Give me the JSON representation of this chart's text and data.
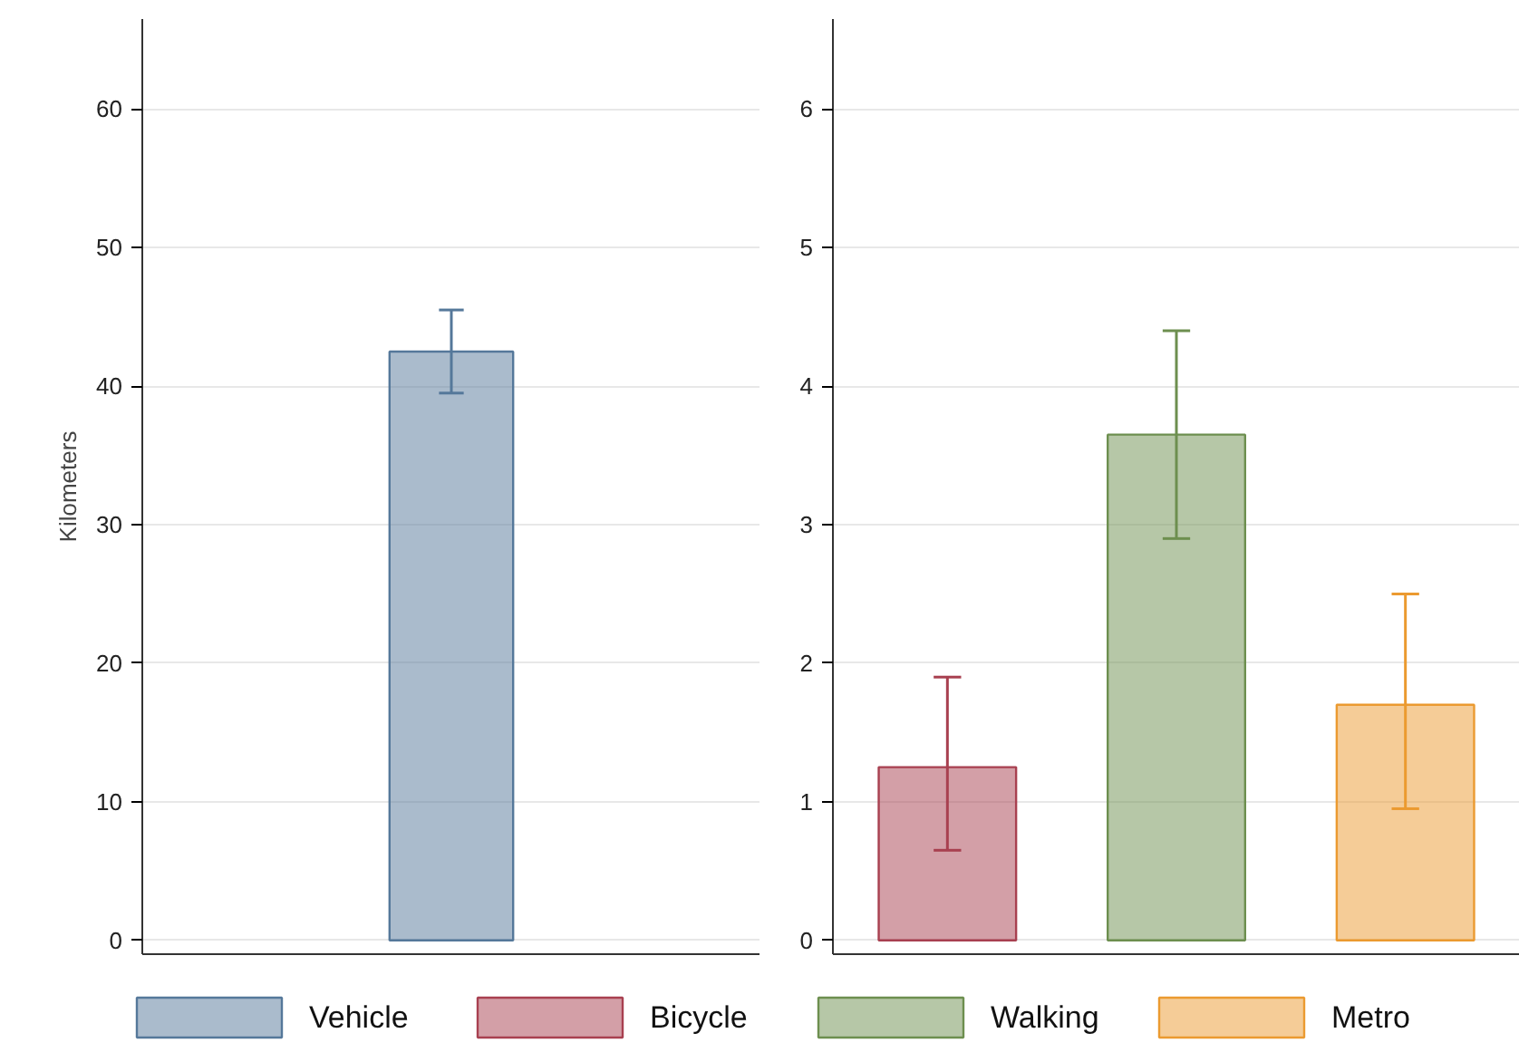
{
  "chart_data": [
    {
      "type": "bar",
      "categories": [
        null
      ],
      "ylabel": "Kilometers",
      "ylim": [
        -1,
        66.5
      ],
      "yticks": [
        0,
        10,
        20,
        30,
        40,
        50,
        60
      ],
      "grid": "y",
      "legend": "bottom",
      "series": [
        {
          "name": "Vehicle",
          "color": "#55789a",
          "values": [
            42.5
          ],
          "errors": [
            [
              39.5,
              45.5
            ]
          ]
        }
      ]
    },
    {
      "type": "bar",
      "categories": [
        null,
        null,
        null
      ],
      "ylim": [
        -0.1,
        6.65
      ],
      "yticks": [
        0,
        1,
        2,
        3,
        4,
        5,
        6
      ],
      "grid": "y",
      "legend": "bottom",
      "series": [
        {
          "name": "Bicycle",
          "color": "#a84050",
          "values": [
            1.25,
            null,
            null
          ],
          "errors": [
            [
              0.65,
              1.9
            ],
            null,
            null
          ]
        },
        {
          "name": "Walking",
          "color": "#6d8f4f",
          "values": [
            null,
            3.65,
            null
          ],
          "errors": [
            null,
            [
              2.9,
              4.4
            ],
            null
          ]
        },
        {
          "name": "Metro",
          "color": "#eb9a30",
          "values": [
            null,
            null,
            1.7
          ],
          "errors": [
            null,
            null,
            [
              0.95,
              2.5
            ]
          ]
        }
      ]
    }
  ]
}
